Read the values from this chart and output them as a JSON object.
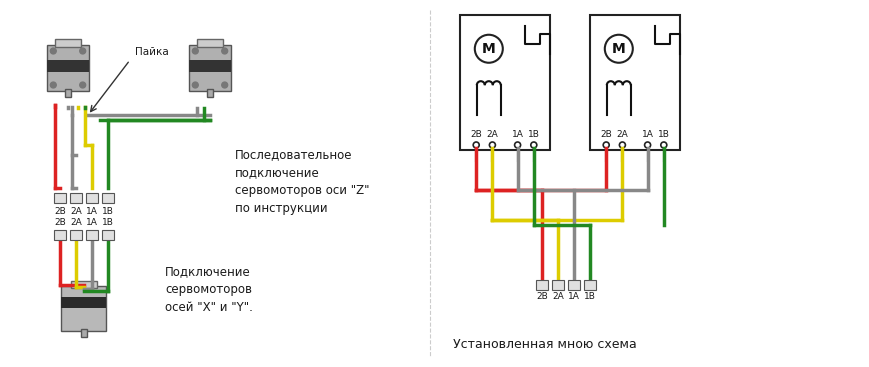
{
  "bg_color": "#ffffff",
  "text_color": "#1a1a1a",
  "wire_colors": {
    "red": "#dd2222",
    "yellow": "#ddcc00",
    "gray": "#888888",
    "green": "#228822"
  },
  "labels_z": [
    "2B",
    "2A",
    "1A",
    "1B"
  ],
  "labels_xy": [
    "2B",
    "2A",
    "1A",
    "1B"
  ],
  "labels_bottom": [
    "2B",
    "2A",
    "1A",
    "1B"
  ],
  "text_z": "Последовательное\nподключение\nсервомоторов оси \"Z\"\nпо инструкции",
  "text_xy": "Подключение\nсервомоторов\nосей \"X\" и \"Y\".",
  "text_caption": "Установленная мною схема",
  "text_paika": "Пайка",
  "motor_labels_left": [
    "2B",
    "2A",
    "1A",
    "1B"
  ],
  "motor_labels_right": [
    "2B",
    "2A",
    "1A",
    "1B"
  ]
}
